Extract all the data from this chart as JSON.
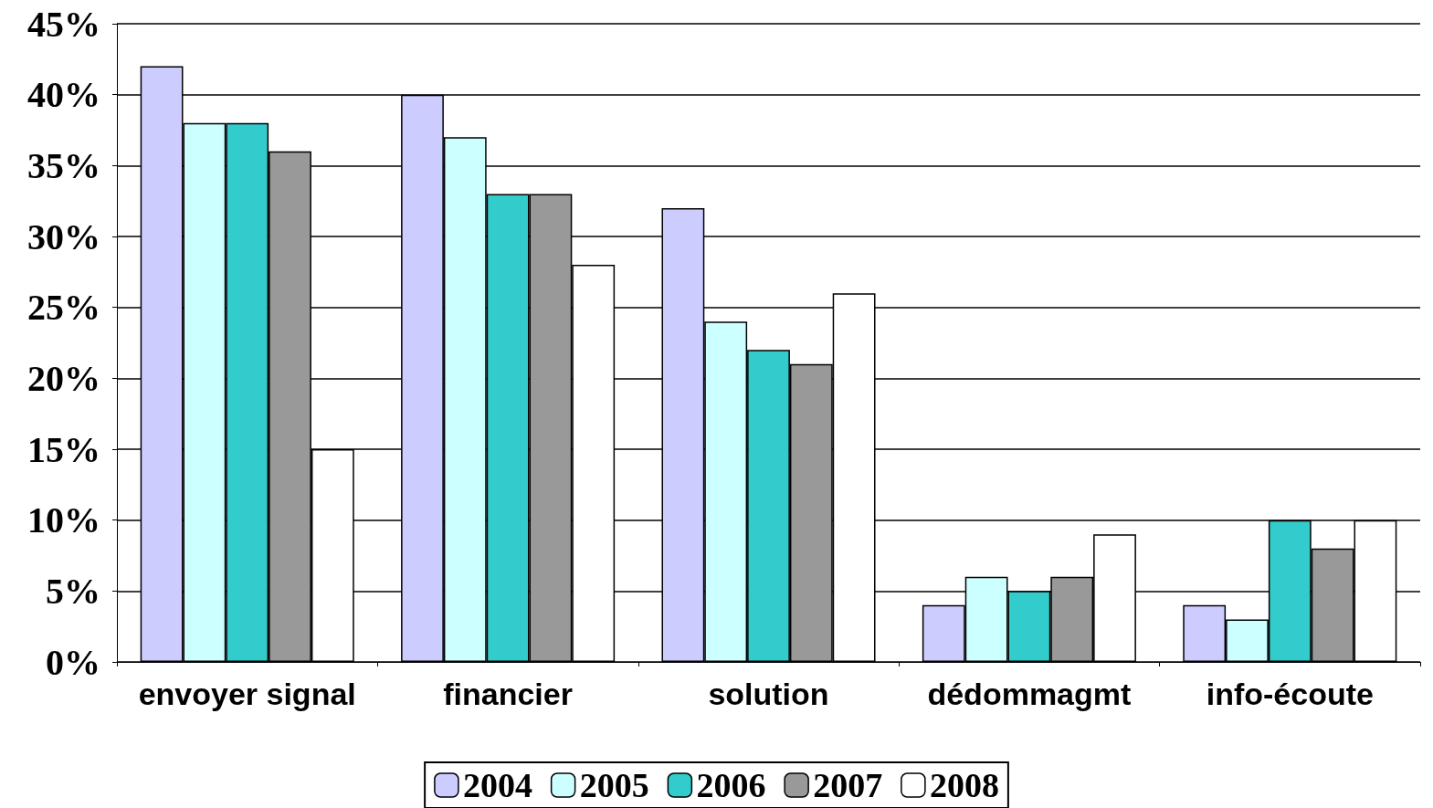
{
  "chart_data": {
    "type": "bar",
    "categories": [
      "envoyer signal",
      "financier",
      "solution",
      "dédommagmt",
      "info-écoute"
    ],
    "series": [
      {
        "name": "2004",
        "color": "#ccccff",
        "values": [
          42,
          40,
          32,
          4,
          4
        ]
      },
      {
        "name": "2005",
        "color": "#ccffff",
        "values": [
          38,
          37,
          24,
          6,
          3
        ]
      },
      {
        "name": "2006",
        "color": "#33cccc",
        "values": [
          38,
          33,
          22,
          5,
          10
        ]
      },
      {
        "name": "2007",
        "color": "#999999",
        "values": [
          36,
          33,
          21,
          6,
          8
        ]
      },
      {
        "name": "2008",
        "color": "#ffffff",
        "values": [
          15,
          28,
          26,
          9,
          10
        ]
      }
    ],
    "ylim": [
      0,
      45
    ],
    "yticks": [
      {
        "value": 0,
        "label": "0%"
      },
      {
        "value": 5,
        "label": "5%"
      },
      {
        "value": 10,
        "label": "10%"
      },
      {
        "value": 15,
        "label": "15%"
      },
      {
        "value": 20,
        "label": "20%"
      },
      {
        "value": 25,
        "label": "25%"
      },
      {
        "value": 30,
        "label": "30%"
      },
      {
        "value": 35,
        "label": "35%"
      },
      {
        "value": 40,
        "label": "40%"
      },
      {
        "value": 45,
        "label": "45%"
      }
    ],
    "grid": "y",
    "legend": "bottom"
  }
}
